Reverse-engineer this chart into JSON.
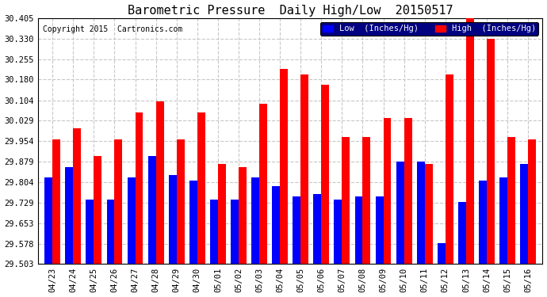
{
  "title": "Barometric Pressure  Daily High/Low  20150517",
  "copyright": "Copyright 2015  Cartronics.com",
  "categories": [
    "04/23",
    "04/24",
    "04/25",
    "04/26",
    "04/27",
    "04/28",
    "04/29",
    "04/30",
    "05/01",
    "05/02",
    "05/03",
    "05/04",
    "05/05",
    "05/06",
    "05/07",
    "05/08",
    "05/09",
    "05/10",
    "05/11",
    "05/12",
    "05/13",
    "05/14",
    "05/15",
    "05/16"
  ],
  "low_values": [
    29.82,
    29.86,
    29.74,
    29.74,
    29.82,
    29.9,
    29.83,
    29.81,
    29.74,
    29.74,
    29.82,
    29.79,
    29.75,
    29.76,
    29.74,
    29.75,
    29.75,
    29.88,
    29.88,
    29.58,
    29.73,
    29.81,
    29.82,
    29.87
  ],
  "high_values": [
    29.96,
    30.0,
    29.9,
    29.96,
    30.06,
    30.1,
    29.96,
    30.06,
    29.87,
    29.86,
    30.09,
    30.22,
    30.2,
    30.16,
    29.97,
    29.97,
    30.04,
    30.04,
    29.87,
    30.2,
    30.41,
    30.33,
    29.97,
    29.96
  ],
  "low_color": "#0000ff",
  "high_color": "#ff0000",
  "bg_color": "#ffffff",
  "grid_color": "#c8c8c8",
  "ymin": 29.503,
  "ymax": 30.405,
  "yticks": [
    29.503,
    29.578,
    29.653,
    29.729,
    29.804,
    29.879,
    29.954,
    30.029,
    30.104,
    30.18,
    30.255,
    30.33,
    30.405
  ],
  "bar_width": 0.38,
  "title_fontsize": 11,
  "legend_bg_color": "#000080",
  "legend_low_label": "Low  (Inches/Hg)",
  "legend_high_label": "High  (Inches/Hg)"
}
